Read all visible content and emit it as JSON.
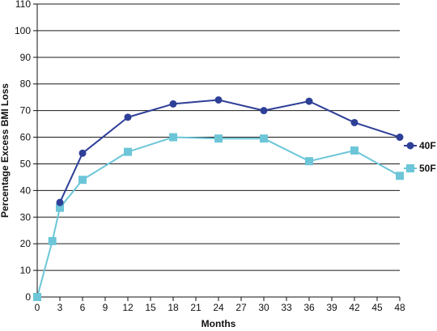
{
  "chart_data": {
    "type": "line",
    "xlabel": "Months",
    "ylabel": "Percentage Excess BMI Loss",
    "xlim": [
      0,
      48
    ],
    "ylim": [
      0,
      110
    ],
    "x_ticks": [
      0,
      3,
      6,
      9,
      12,
      15,
      18,
      21,
      24,
      27,
      30,
      33,
      36,
      39,
      42,
      45,
      48
    ],
    "y_ticks": [
      0,
      10,
      20,
      30,
      40,
      50,
      60,
      70,
      80,
      90,
      100,
      110
    ],
    "grid": "horizontal",
    "legend": "right",
    "series": [
      {
        "name": "40F",
        "color": "#2e3f97",
        "marker": "circle",
        "points": [
          [
            3,
            35.5
          ],
          [
            6,
            54
          ],
          [
            12,
            67.5
          ],
          [
            18,
            72.5
          ],
          [
            24,
            74
          ],
          [
            30,
            70
          ],
          [
            36,
            73.5
          ],
          [
            42,
            65.5
          ],
          [
            48,
            60
          ]
        ]
      },
      {
        "name": "50F",
        "color": "#6cc6d8",
        "marker": "square",
        "points": [
          [
            0,
            0
          ],
          [
            2,
            21
          ],
          [
            3,
            33.5
          ],
          [
            6,
            44
          ],
          [
            12,
            54.5
          ],
          [
            18,
            60
          ],
          [
            24,
            59.5
          ],
          [
            30,
            59.5
          ],
          [
            36,
            51
          ],
          [
            42,
            55
          ],
          [
            48,
            45.5
          ]
        ]
      }
    ]
  }
}
